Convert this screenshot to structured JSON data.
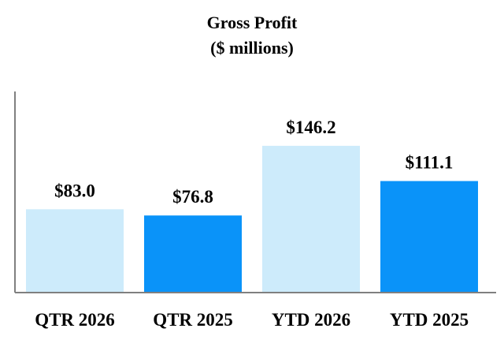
{
  "chart_data": {
    "type": "bar",
    "title": "Gross Profit",
    "subtitle": "($ millions)",
    "categories": [
      "QTR 2026",
      "QTR 2025",
      "YTD 2026",
      "YTD 2025"
    ],
    "values": [
      83.0,
      76.8,
      146.2,
      111.1
    ],
    "value_labels": [
      "$83.0",
      "$76.8",
      "$146.2",
      "$111.1"
    ],
    "bar_colors": [
      "#cdebfb",
      "#0a93f9",
      "#cdebfb",
      "#0a93f9"
    ],
    "xlabel": "",
    "ylabel": "",
    "ylim": [
      0,
      200
    ],
    "grid": false,
    "legend": "none"
  }
}
